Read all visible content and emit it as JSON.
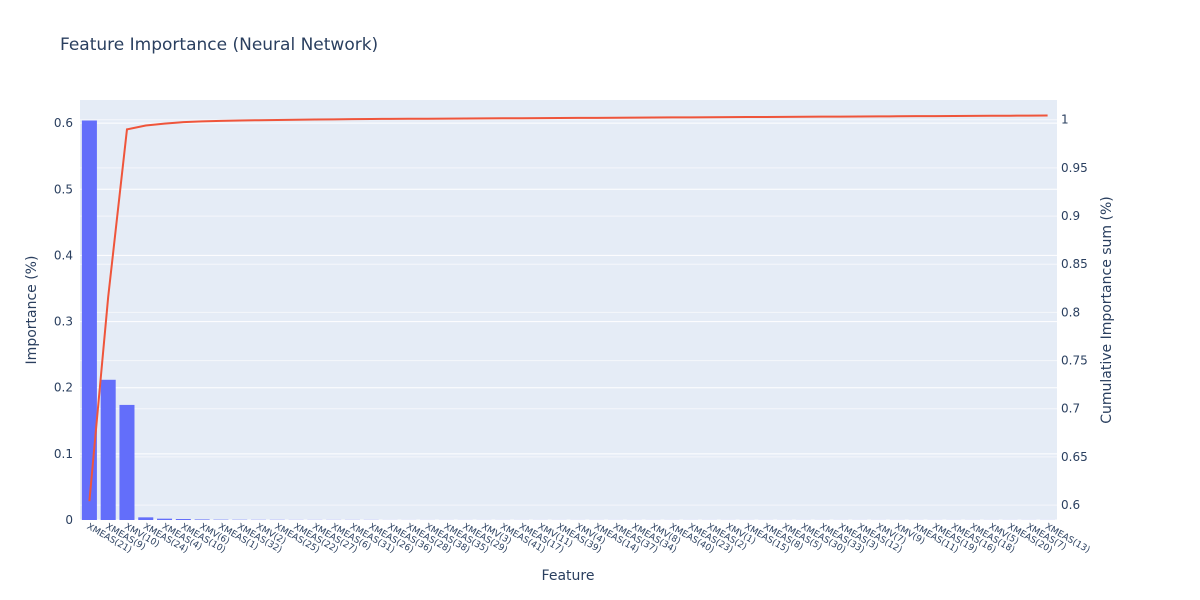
{
  "chart_data": {
    "type": "bar",
    "title": "Feature Importance (Neural Network)",
    "xlabel": "Feature",
    "ylabel": "Importance (%)",
    "y2label": "Cumulative Importance sum (%)",
    "ylim": [
      0,
      0.635
    ],
    "y2lim": [
      0.5845,
      1.0205
    ],
    "yticks": [
      0,
      0.1,
      0.2,
      0.3,
      0.4,
      0.5,
      0.6
    ],
    "y2ticks": [
      0.6,
      0.65,
      0.7,
      0.75,
      0.8,
      0.85,
      0.9,
      0.95,
      1
    ],
    "grid": true,
    "categories": [
      "XMEAS(21)",
      "XMEAS(9)",
      "XMV(10)",
      "XMEAS(24)",
      "XMEAS(4)",
      "XMEAS(10)",
      "XMV(6)",
      "XMEAS(1)",
      "XMEAS(32)",
      "XMV(2)",
      "XMEAS(25)",
      "XMEAS(22)",
      "XMEAS(27)",
      "XMEAS(6)",
      "XMEAS(31)",
      "XMEAS(26)",
      "XMEAS(36)",
      "XMEAS(28)",
      "XMEAS(38)",
      "XMEAS(35)",
      "XMEAS(29)",
      "XMV(3)",
      "XMEAS(41)",
      "XMEAS(17)",
      "XMV(11)",
      "XMEAS(39)",
      "XMV(4)",
      "XMEAS(14)",
      "XMEAS(37)",
      "XMEAS(34)",
      "XMV(8)",
      "XMEAS(40)",
      "XMEAS(23)",
      "XMEAS(2)",
      "XMV(1)",
      "XMEAS(15)",
      "XMEAS(8)",
      "XMEAS(5)",
      "XMEAS(30)",
      "XMEAS(33)",
      "XMEAS(3)",
      "XMEAS(12)",
      "XMV(7)",
      "XMV(9)",
      "XMEAS(11)",
      "XMEAS(19)",
      "XMEAS(16)",
      "XMEAS(18)",
      "XMV(5)",
      "XMEAS(20)",
      "XMEAS(7)",
      "XMEAS(13)"
    ],
    "series": [
      {
        "type": "bar",
        "axis": "left",
        "color": "#636efa",
        "values": [
          0.604,
          0.212,
          0.174,
          0.004,
          0.002,
          0.0015,
          0.0008,
          0.0005,
          0.0004,
          0.0003,
          0.0003,
          0.0002,
          0.0002,
          0.0002,
          0.0002,
          0.0002,
          0.0001,
          0.0001,
          0.0001,
          0.0001,
          0.0001,
          0.0001,
          0.0001,
          0.0001,
          0.0001,
          0.0001,
          0.0001,
          0.0001,
          0.0001,
          0.0001,
          0.0001,
          0.0001,
          0.0001,
          0.0001,
          0.0001,
          0.0001,
          0.0001,
          0.0001,
          0.0001,
          0.0001,
          0.0001,
          0.0001,
          0.0001,
          0.0001,
          0.0001,
          0.0001,
          0.0001,
          0.0001,
          0.0001,
          0.0001,
          0.0001,
          0.0001
        ]
      },
      {
        "type": "line",
        "axis": "right",
        "color": "#ef553b",
        "values": [
          0.604,
          0.816,
          0.99,
          0.994,
          0.996,
          0.9975,
          0.9983,
          0.9988,
          0.9992,
          0.9995,
          0.9998,
          1.0,
          1.0002,
          1.0004,
          1.0006,
          1.0008,
          1.0009,
          1.001,
          1.0011,
          1.0012,
          1.0013,
          1.0014,
          1.0015,
          1.0016,
          1.0017,
          1.0018,
          1.0019,
          1.002,
          1.0021,
          1.0022,
          1.0023,
          1.0024,
          1.0025,
          1.0026,
          1.0027,
          1.0028,
          1.0029,
          1.003,
          1.0031,
          1.0032,
          1.0033,
          1.0034,
          1.0035,
          1.0036,
          1.0037,
          1.0038,
          1.0039,
          1.004,
          1.0041,
          1.0042,
          1.0043,
          1.0044
        ]
      }
    ]
  }
}
